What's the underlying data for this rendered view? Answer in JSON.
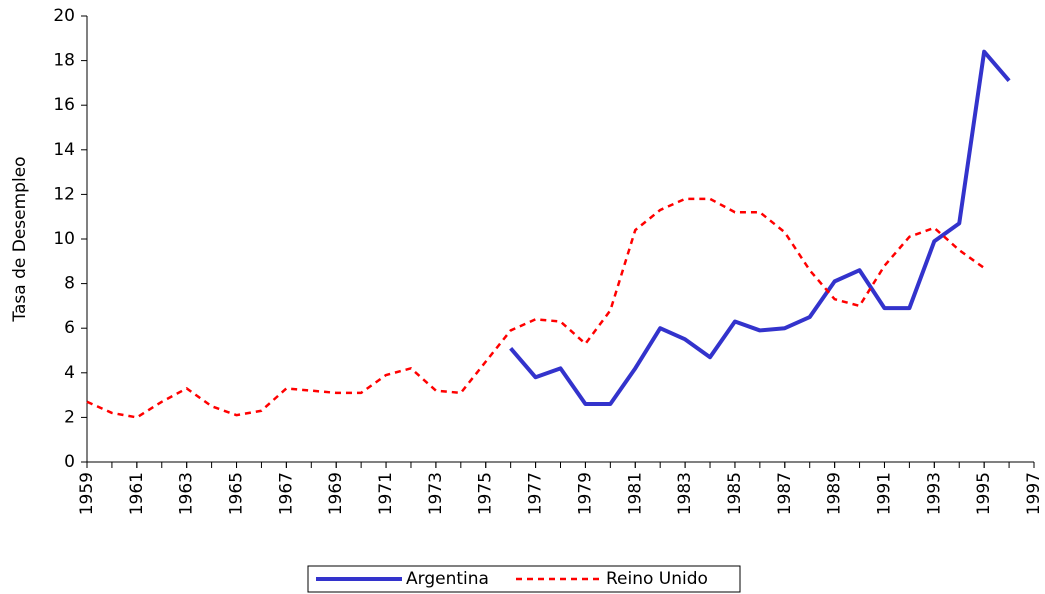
{
  "chart_data": {
    "type": "line",
    "y_label": "Tasa de Desempleo",
    "x": [
      1959,
      1960,
      1961,
      1962,
      1963,
      1964,
      1965,
      1966,
      1967,
      1968,
      1969,
      1970,
      1971,
      1972,
      1973,
      1974,
      1975,
      1976,
      1977,
      1978,
      1979,
      1980,
      1981,
      1982,
      1983,
      1984,
      1985,
      1986,
      1987,
      1988,
      1989,
      1990,
      1991,
      1992,
      1993,
      1994,
      1995,
      1996
    ],
    "series": [
      {
        "name": "Argentina",
        "color": "#3333cc",
        "style": "solid",
        "values": [
          null,
          null,
          null,
          null,
          null,
          null,
          null,
          null,
          null,
          null,
          null,
          null,
          null,
          null,
          null,
          null,
          null,
          5.1,
          3.8,
          4.2,
          2.6,
          2.6,
          4.2,
          6.0,
          5.5,
          4.7,
          6.3,
          5.9,
          6.0,
          6.5,
          8.1,
          8.6,
          6.9,
          6.9,
          9.9,
          10.7,
          18.4,
          17.1
        ]
      },
      {
        "name": "Reino Unido",
        "color": "#ff0000",
        "style": "dashed",
        "values": [
          2.7,
          2.2,
          2.0,
          2.7,
          3.3,
          2.5,
          2.1,
          2.3,
          3.3,
          3.2,
          3.1,
          3.1,
          3.9,
          4.2,
          3.2,
          3.1,
          4.5,
          5.9,
          6.4,
          6.3,
          5.3,
          6.8,
          10.4,
          11.3,
          11.8,
          11.8,
          11.2,
          11.2,
          10.3,
          8.6,
          7.3,
          7.0,
          8.8,
          10.1,
          10.5,
          9.5,
          8.7,
          null
        ]
      }
    ],
    "xlim": [
      1959,
      1997
    ],
    "xticks": [
      1959,
      1961,
      1963,
      1965,
      1967,
      1969,
      1971,
      1973,
      1975,
      1977,
      1979,
      1981,
      1983,
      1985,
      1987,
      1989,
      1991,
      1993,
      1995,
      1997
    ],
    "ylim": [
      0,
      20
    ],
    "yticks": [
      0,
      2,
      4,
      6,
      8,
      10,
      12,
      14,
      16,
      18,
      20
    ],
    "legend": "bottom"
  }
}
